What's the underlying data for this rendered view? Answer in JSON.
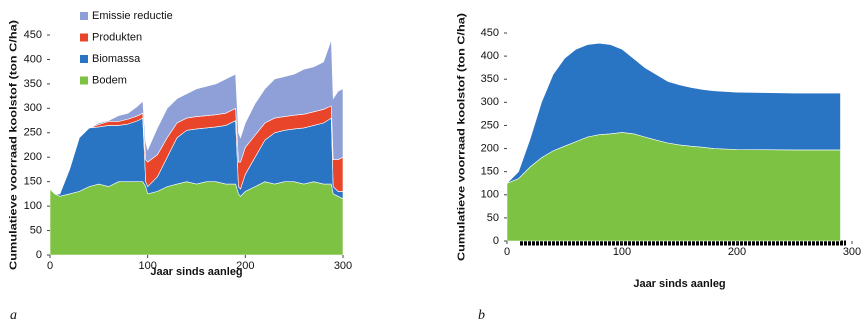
{
  "chart_data": [
    {
      "type": "stacked_area",
      "panel_label": "a",
      "x_label": "Jaar sinds aanleg",
      "y_label": "Cumulatieve voorraad koolstof (ton C/ha)",
      "xlim": [
        0,
        300
      ],
      "ylim": [
        0,
        450
      ],
      "xticks": [
        0,
        100,
        200,
        300
      ],
      "yticks": [
        0,
        50,
        100,
        150,
        200,
        250,
        300,
        350,
        400,
        450
      ],
      "x": [
        0,
        5,
        10,
        20,
        30,
        40,
        50,
        60,
        70,
        80,
        90,
        95,
        98,
        100,
        110,
        120,
        130,
        140,
        150,
        160,
        170,
        180,
        190,
        193,
        195,
        200,
        210,
        220,
        230,
        240,
        250,
        260,
        270,
        280,
        288,
        290,
        295,
        300
      ],
      "series": [
        {
          "name": "Bodem",
          "color": "#7dc243",
          "values": [
            135,
            125,
            120,
            125,
            130,
            140,
            145,
            140,
            150,
            150,
            150,
            150,
            140,
            125,
            130,
            140,
            145,
            150,
            145,
            150,
            150,
            145,
            145,
            125,
            120,
            130,
            140,
            150,
            145,
            150,
            150,
            145,
            150,
            145,
            145,
            125,
            120,
            115
          ]
        },
        {
          "name": "Biomassa",
          "color": "#2a74c4",
          "values": [
            0,
            0,
            5,
            50,
            110,
            120,
            117,
            125,
            115,
            118,
            125,
            130,
            10,
            15,
            30,
            60,
            95,
            105,
            113,
            110,
            112,
            120,
            130,
            15,
            15,
            35,
            60,
            85,
            105,
            105,
            108,
            115,
            115,
            125,
            135,
            15,
            10,
            15
          ]
        },
        {
          "name": "Produkten",
          "color": "#e8452a",
          "values": [
            0,
            0,
            0,
            0,
            0,
            0,
            5,
            8,
            8,
            10,
            10,
            10,
            45,
            50,
            45,
            40,
            30,
            25,
            25,
            25,
            25,
            25,
            25,
            50,
            55,
            55,
            45,
            35,
            30,
            28,
            28,
            28,
            28,
            28,
            25,
            55,
            65,
            70
          ]
        },
        {
          "name": "Emissie reductie",
          "color": "#8fa0d8",
          "values": [
            0,
            0,
            0,
            0,
            0,
            0,
            3,
            2,
            12,
            12,
            20,
            25,
            35,
            25,
            55,
            60,
            50,
            50,
            57,
            60,
            63,
            70,
            70,
            60,
            50,
            50,
            65,
            70,
            80,
            82,
            84,
            92,
            92,
            97,
            135,
            125,
            140,
            140
          ]
        }
      ],
      "legend": "top-left"
    },
    {
      "type": "stacked_area",
      "panel_label": "b",
      "x_label": "Jaar sinds aanleg",
      "y_label": "Cumulatieve voorraad koolstof (ton C/ha)",
      "xlim": [
        0,
        300
      ],
      "ylim": [
        0,
        450
      ],
      "xticks": [
        0,
        100,
        200,
        300
      ],
      "yticks": [
        0,
        50,
        100,
        150,
        200,
        250,
        300,
        350,
        400,
        450
      ],
      "x": [
        0,
        10,
        20,
        30,
        40,
        50,
        60,
        70,
        80,
        90,
        100,
        110,
        120,
        130,
        140,
        150,
        160,
        170,
        180,
        200,
        250,
        290
      ],
      "series": [
        {
          "color": "#7dc243",
          "values": [
            125,
            135,
            160,
            180,
            195,
            205,
            215,
            225,
            230,
            232,
            235,
            232,
            225,
            218,
            212,
            208,
            205,
            203,
            200,
            198,
            197,
            197
          ]
        },
        {
          "color": "#2a74c4",
          "values": [
            0,
            15,
            60,
            120,
            165,
            190,
            200,
            200,
            198,
            193,
            180,
            163,
            150,
            142,
            133,
            130,
            127,
            125,
            125,
            124,
            123,
            123
          ]
        }
      ]
    }
  ]
}
